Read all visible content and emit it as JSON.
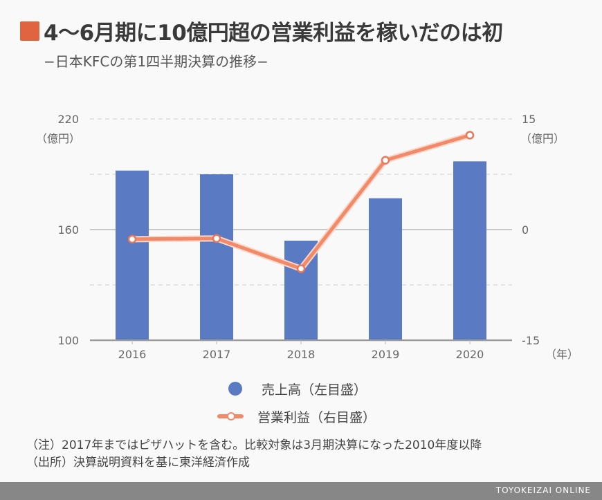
{
  "header": {
    "title": "4〜6月期に10億円超の営業利益を稼いだのは初",
    "subtitle": "−日本KFCの第1四半期決算の推移−",
    "accent_color": "#e0643f"
  },
  "chart_data": {
    "type": "bar+line",
    "title": "4〜6月期に10億円超の営業利益を稼いだのは初",
    "subtitle": "−日本KFCの第1四半期決算の推移−",
    "categories": [
      "2016",
      "2017",
      "2018",
      "2019",
      "2020"
    ],
    "xlabel": "（年）",
    "series": [
      {
        "name": "売上高（左目盛）",
        "type": "bar",
        "axis": "left",
        "color": "#5b7ac4",
        "values": [
          192,
          190,
          154,
          177,
          197
        ]
      },
      {
        "name": "営業利益（右目盛）",
        "type": "line",
        "axis": "right",
        "color": "#f08a68",
        "values": [
          -1.3,
          -1.2,
          -5.3,
          9.4,
          12.8
        ]
      }
    ],
    "left_axis": {
      "label": "（億円）",
      "ylim": [
        100,
        220
      ],
      "ticks": [
        "100",
        "160",
        "220"
      ],
      "grid": [
        100,
        130,
        160,
        190,
        220
      ]
    },
    "right_axis": {
      "label": "（億円）",
      "ylim": [
        -15,
        15
      ],
      "ticks": [
        "-15",
        "0",
        "15"
      ]
    },
    "grid": true,
    "legend_position": "bottom-center"
  },
  "legend": {
    "bar_label": "売上高（左目盛）",
    "line_label": "営業利益（右目盛）"
  },
  "notes": {
    "note": "（注）2017年まではピザハットを含む。比較対象は3月期決算になった2010年度以降",
    "source": "（出所）決算説明資料を基に東洋経済作成"
  },
  "footer": {
    "brand": "TOYOKEIZAI ONLINE"
  }
}
